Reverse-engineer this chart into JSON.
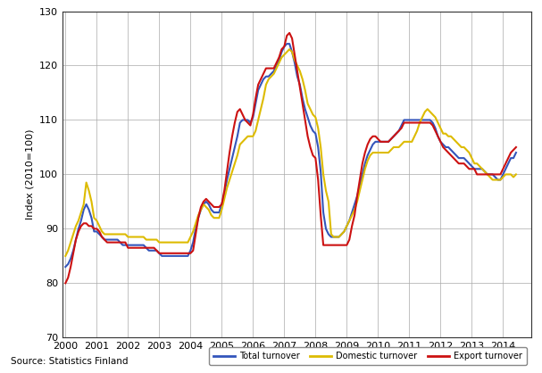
{
  "title": "",
  "ylabel": "Index (2010=100)",
  "xlabel": "",
  "ylim": [
    70,
    130
  ],
  "xlim": [
    1999.9,
    2014.9
  ],
  "yticks": [
    70,
    80,
    90,
    100,
    110,
    120,
    130
  ],
  "xticks": [
    2000,
    2001,
    2002,
    2003,
    2004,
    2005,
    2006,
    2007,
    2008,
    2009,
    2010,
    2011,
    2012,
    2013,
    2014
  ],
  "source_text": "Source: Statistics Finland",
  "legend_entries": [
    "Total turnover",
    "Domestic turnover",
    "Export turnover"
  ],
  "line_colors": [
    "#3355bb",
    "#ddbb00",
    "#cc1111"
  ],
  "line_width": 1.5,
  "total_turnover": [
    83.0,
    83.5,
    84.5,
    86.0,
    88.0,
    90.0,
    91.5,
    93.5,
    94.5,
    93.5,
    92.0,
    89.5,
    89.5,
    89.0,
    88.5,
    88.0,
    88.0,
    88.0,
    88.0,
    88.0,
    88.0,
    87.5,
    87.0,
    87.0,
    87.0,
    87.0,
    87.0,
    87.0,
    87.0,
    87.0,
    87.0,
    86.5,
    86.0,
    86.0,
    86.0,
    86.0,
    85.5,
    85.0,
    85.0,
    85.0,
    85.0,
    85.0,
    85.0,
    85.0,
    85.0,
    85.0,
    85.0,
    85.0,
    86.0,
    87.5,
    90.0,
    92.0,
    93.5,
    94.5,
    95.0,
    94.5,
    93.5,
    93.0,
    93.0,
    93.0,
    94.5,
    96.5,
    99.0,
    101.0,
    103.0,
    105.0,
    107.0,
    109.5,
    110.0,
    110.0,
    110.0,
    109.5,
    110.5,
    113.0,
    115.5,
    116.5,
    117.5,
    118.0,
    118.0,
    118.5,
    119.0,
    120.0,
    121.0,
    122.5,
    123.5,
    124.0,
    124.0,
    122.5,
    120.5,
    118.0,
    116.5,
    114.0,
    112.0,
    110.5,
    109.0,
    108.0,
    107.5,
    105.0,
    100.5,
    93.0,
    90.0,
    89.0,
    88.5,
    88.5,
    88.5,
    88.5,
    89.0,
    89.5,
    90.5,
    91.5,
    93.0,
    94.5,
    96.0,
    98.0,
    100.0,
    102.0,
    103.5,
    104.5,
    105.5,
    106.0,
    106.0,
    106.0,
    106.0,
    106.0,
    106.0,
    106.5,
    107.0,
    107.5,
    108.0,
    109.0,
    110.0,
    110.0,
    110.0,
    110.0,
    110.0,
    110.0,
    110.0,
    110.0,
    110.0,
    110.0,
    110.0,
    109.5,
    108.5,
    107.0,
    106.0,
    105.5,
    105.0,
    105.0,
    104.5,
    104.0,
    103.5,
    103.0,
    103.0,
    103.0,
    102.5,
    102.0,
    101.5,
    101.0,
    101.0,
    101.0,
    101.0,
    100.5,
    100.0,
    100.0,
    100.0,
    99.5,
    99.0,
    99.0,
    100.0,
    101.0,
    102.0,
    103.0,
    103.0,
    104.0
  ],
  "domestic_turnover": [
    85.0,
    86.0,
    87.5,
    89.0,
    90.5,
    91.5,
    93.0,
    94.5,
    98.5,
    97.0,
    95.0,
    92.0,
    91.5,
    90.5,
    89.5,
    89.0,
    89.0,
    89.0,
    89.0,
    89.0,
    89.0,
    89.0,
    89.0,
    89.0,
    88.5,
    88.5,
    88.5,
    88.5,
    88.5,
    88.5,
    88.5,
    88.0,
    88.0,
    88.0,
    88.0,
    88.0,
    87.5,
    87.5,
    87.5,
    87.5,
    87.5,
    87.5,
    87.5,
    87.5,
    87.5,
    87.5,
    87.5,
    87.5,
    88.5,
    89.5,
    91.0,
    92.5,
    93.5,
    94.5,
    94.0,
    93.5,
    92.5,
    92.0,
    92.0,
    92.0,
    93.5,
    95.5,
    97.5,
    99.0,
    100.5,
    102.0,
    103.5,
    105.5,
    106.0,
    106.5,
    107.0,
    107.0,
    107.0,
    108.0,
    110.0,
    112.0,
    114.0,
    116.5,
    117.5,
    118.0,
    118.5,
    119.5,
    120.5,
    121.5,
    122.0,
    122.5,
    123.0,
    122.5,
    121.0,
    120.0,
    119.0,
    117.5,
    115.5,
    113.0,
    112.0,
    111.0,
    110.5,
    108.5,
    105.0,
    100.0,
    97.0,
    95.0,
    89.0,
    88.5,
    88.5,
    88.5,
    89.0,
    89.5,
    90.5,
    91.5,
    92.5,
    93.5,
    95.0,
    97.0,
    99.0,
    101.0,
    102.5,
    103.5,
    104.0,
    104.0,
    104.0,
    104.0,
    104.0,
    104.0,
    104.0,
    104.5,
    105.0,
    105.0,
    105.0,
    105.5,
    106.0,
    106.0,
    106.0,
    106.0,
    107.0,
    108.0,
    109.5,
    110.5,
    111.5,
    112.0,
    111.5,
    111.0,
    110.5,
    109.5,
    108.5,
    107.5,
    107.5,
    107.0,
    107.0,
    106.5,
    106.0,
    105.5,
    105.0,
    105.0,
    104.5,
    104.0,
    103.0,
    102.0,
    102.0,
    101.5,
    101.0,
    100.5,
    100.0,
    99.5,
    99.0,
    99.0,
    99.0,
    99.0,
    99.5,
    100.0,
    100.0,
    100.0,
    99.5,
    100.0
  ],
  "export_turnover": [
    80.0,
    81.0,
    83.0,
    85.5,
    88.0,
    89.5,
    90.5,
    91.0,
    91.0,
    90.5,
    90.5,
    90.0,
    90.0,
    89.5,
    88.5,
    88.0,
    87.5,
    87.5,
    87.5,
    87.5,
    87.5,
    87.5,
    87.5,
    87.5,
    86.5,
    86.5,
    86.5,
    86.5,
    86.5,
    86.5,
    86.5,
    86.5,
    86.5,
    86.5,
    86.5,
    86.0,
    85.5,
    85.5,
    85.5,
    85.5,
    85.5,
    85.5,
    85.5,
    85.5,
    85.5,
    85.5,
    85.5,
    85.5,
    85.5,
    86.0,
    89.0,
    92.0,
    94.0,
    95.0,
    95.5,
    95.0,
    94.5,
    94.0,
    94.0,
    94.0,
    94.5,
    97.0,
    100.5,
    104.0,
    107.0,
    109.5,
    111.5,
    112.0,
    111.0,
    110.0,
    109.5,
    109.0,
    111.0,
    114.0,
    116.5,
    117.5,
    118.5,
    119.5,
    119.5,
    119.5,
    119.5,
    120.5,
    121.5,
    123.0,
    123.5,
    125.5,
    126.0,
    125.0,
    122.0,
    119.0,
    116.0,
    113.0,
    110.0,
    107.0,
    105.0,
    103.5,
    103.0,
    99.0,
    92.5,
    87.0,
    87.0,
    87.0,
    87.0,
    87.0,
    87.0,
    87.0,
    87.0,
    87.0,
    87.0,
    88.0,
    90.5,
    92.5,
    96.0,
    99.0,
    102.0,
    104.0,
    105.5,
    106.5,
    107.0,
    107.0,
    106.5,
    106.0,
    106.0,
    106.0,
    106.0,
    106.5,
    107.0,
    107.5,
    108.0,
    108.5,
    109.5,
    109.5,
    109.5,
    109.5,
    109.5,
    109.5,
    109.5,
    109.5,
    109.5,
    109.5,
    109.5,
    109.0,
    108.0,
    107.0,
    106.0,
    105.0,
    104.5,
    104.0,
    103.5,
    103.0,
    102.5,
    102.0,
    102.0,
    102.0,
    101.5,
    101.0,
    101.0,
    101.0,
    100.0,
    100.0,
    100.0,
    100.0,
    100.0,
    100.0,
    100.0,
    100.0,
    100.0,
    100.0,
    101.0,
    102.0,
    103.0,
    104.0,
    104.5,
    105.0
  ]
}
